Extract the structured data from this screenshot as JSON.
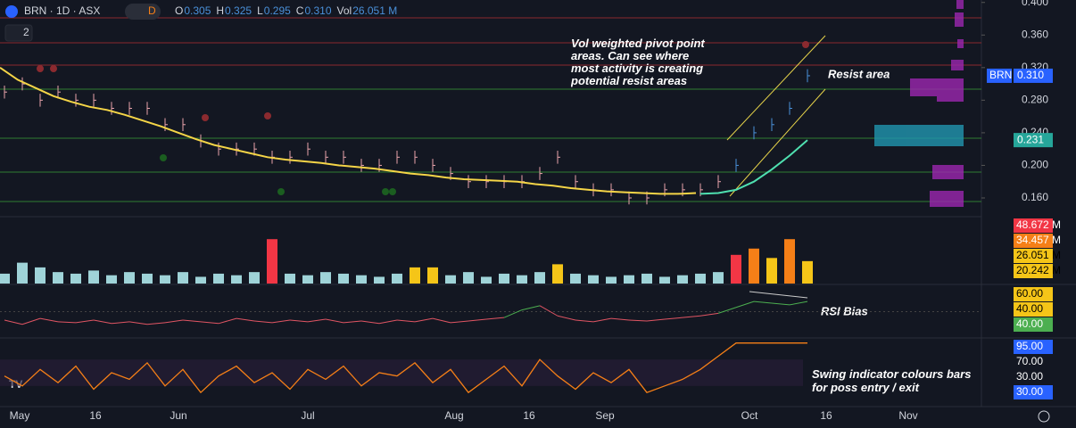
{
  "header": {
    "symbol": "BRN · 1D · ASX",
    "badge": "D",
    "ohlc": [
      {
        "label": "O",
        "value": "0.305"
      },
      {
        "label": "H",
        "value": "0.325"
      },
      {
        "label": "L",
        "value": "0.295"
      },
      {
        "label": "C",
        "value": "0.310"
      },
      {
        "label": "Vol",
        "value": "26.051 M"
      }
    ],
    "collapse": "2"
  },
  "price": {
    "ylim": [
      0.137,
      0.403
    ],
    "yticks": [
      {
        "value": 0.4,
        "label": "0.400"
      },
      {
        "value": 0.36,
        "label": "0.360"
      },
      {
        "value": 0.32,
        "label": "0.320"
      },
      {
        "value": 0.28,
        "label": "0.280"
      },
      {
        "value": 0.24,
        "label": "0.240"
      },
      {
        "value": 0.2,
        "label": "0.200"
      },
      {
        "value": 0.16,
        "label": "0.160"
      }
    ],
    "closes": [
      0.29,
      0.3,
      0.28,
      0.29,
      0.28,
      0.28,
      0.27,
      0.27,
      0.27,
      0.25,
      0.25,
      0.23,
      0.22,
      0.22,
      0.22,
      0.21,
      0.21,
      0.22,
      0.21,
      0.21,
      0.2,
      0.2,
      0.21,
      0.21,
      0.2,
      0.19,
      0.18,
      0.18,
      0.18,
      0.18,
      0.19,
      0.21,
      0.18,
      0.17,
      0.17,
      0.16,
      0.16,
      0.17,
      0.17,
      0.17,
      0.18,
      0.2,
      0.24,
      0.25,
      0.27,
      0.31
    ],
    "ma": [
      0.32,
      0.305,
      0.295,
      0.285,
      0.278,
      0.272,
      0.268,
      0.262,
      0.255,
      0.248,
      0.24,
      0.232,
      0.225,
      0.22,
      0.215,
      0.21,
      0.207,
      0.205,
      0.203,
      0.2,
      0.198,
      0.196,
      0.193,
      0.19,
      0.188,
      0.185,
      0.183,
      0.182,
      0.181,
      0.18,
      0.177,
      0.175,
      0.172,
      0.17,
      0.168,
      0.167,
      0.166,
      0.165,
      0.165,
      0.166
    ],
    "ma2": [
      0.165,
      0.166,
      0.17,
      0.18,
      0.195,
      0.212,
      0.231
    ],
    "symbol_badge": "BRN",
    "last": {
      "value": 0.31,
      "label": "0.310"
    },
    "ma2_badge": {
      "value": 0.231,
      "label": "0.231"
    },
    "up_color": "#4a90d9",
    "down_color": "#e8a3ab",
    "ma_color": "#f5d547",
    "ma2_color": "#4fe0b0"
  },
  "volume": {
    "ylim": [
      11.7,
      53.2
    ],
    "values": [
      18,
      25,
      22,
      19,
      18,
      20,
      17,
      19,
      18,
      17,
      19,
      16,
      18,
      17,
      19,
      40,
      18,
      17,
      19,
      18,
      17,
      16,
      18,
      22,
      22,
      17,
      19,
      16,
      18,
      17,
      19,
      24,
      18,
      17,
      16,
      17,
      18,
      16,
      17,
      18,
      19,
      30,
      34,
      28,
      40,
      26
    ],
    "bar_colors": [
      "n",
      "n",
      "n",
      "n",
      "n",
      "n",
      "n",
      "n",
      "n",
      "n",
      "n",
      "n",
      "n",
      "n",
      "n",
      "r",
      "n",
      "n",
      "n",
      "n",
      "n",
      "n",
      "n",
      "y",
      "y",
      "n",
      "n",
      "n",
      "n",
      "n",
      "n",
      "y",
      "n",
      "n",
      "n",
      "n",
      "n",
      "n",
      "n",
      "n",
      "n",
      "r",
      "o",
      "y",
      "o",
      "y"
    ],
    "palette": {
      "n": "#9fd3d8",
      "r": "#f23645",
      "y": "#f5c518",
      "o": "#f57f17"
    },
    "badges": [
      {
        "label": "48.672 M",
        "color": "#f23645"
      },
      {
        "label": "34.457 M",
        "color": "#f57f17"
      },
      {
        "label": "26.051 M",
        "color": "#f5c518"
      },
      {
        "label": "20.242 M",
        "color": "#f5c518"
      }
    ]
  },
  "rsi": {
    "ylim": [
      20,
      80
    ],
    "mid": 50,
    "values": [
      40,
      35,
      42,
      38,
      37,
      40,
      36,
      38,
      35,
      37,
      40,
      38,
      36,
      42,
      39,
      37,
      40,
      38,
      41,
      37,
      39,
      36,
      40,
      38,
      42,
      37,
      39,
      41,
      43,
      52,
      57,
      45,
      40,
      38,
      42,
      40,
      39,
      41,
      43,
      45,
      48,
      55,
      62,
      60,
      58,
      62
    ],
    "badges": [
      "60.00",
      "40.00",
      "40.00"
    ],
    "label": "RSI Bias"
  },
  "swing": {
    "ylim": [
      0,
      100
    ],
    "values": [
      45,
      30,
      55,
      35,
      60,
      25,
      50,
      40,
      65,
      30,
      55,
      20,
      45,
      60,
      35,
      50,
      25,
      55,
      40,
      60,
      30,
      50,
      45,
      65,
      35,
      55,
      20,
      40,
      60,
      30,
      70,
      45,
      25,
      50,
      35,
      55,
      20,
      30,
      40,
      55,
      75,
      95,
      95,
      95,
      95,
      95
    ],
    "badges": [
      "95.00",
      "70.00",
      "30.00",
      "30.00"
    ],
    "label": "Swing indicator colours bars for poss entry / exit"
  },
  "annotations": {
    "pivot": "Vol weighted pivot point areas. Can see where most activity is creating potential resist areas",
    "resist": "Resist area"
  },
  "time_axis": [
    "May",
    "16",
    "Jun",
    "Jul",
    "Aug",
    "16",
    "Sep",
    "Oct",
    "16",
    "Nov"
  ]
}
